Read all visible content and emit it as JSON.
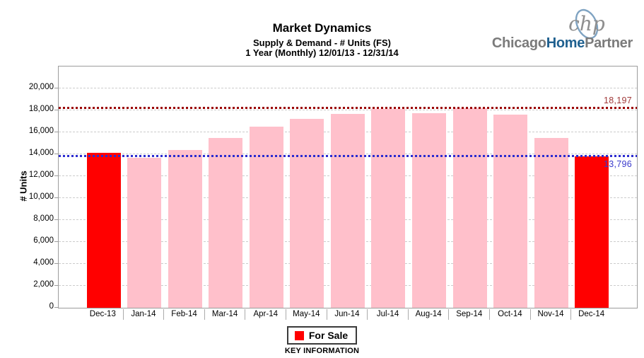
{
  "header": {
    "title": "Market Dynamics",
    "subtitle1": "Supply & Demand - # Units (FS)",
    "subtitle2": "1 Year (Monthly) 12/01/13 - 12/31/14"
  },
  "logo": {
    "monogram": "chp",
    "part1": "Chicago",
    "part2": "Home",
    "part3": "Partner",
    "gray": "#7b7b7b",
    "blue": "#1f608f",
    "ellipse_stroke": "#7fa3c2"
  },
  "chart_data": {
    "type": "bar",
    "title": "Market Dynamics",
    "xlabel": "",
    "ylabel": "# Units",
    "ylim": [
      0,
      22000
    ],
    "grid": true,
    "categories": [
      "Dec-13",
      "Jan-14",
      "Feb-14",
      "Mar-14",
      "Apr-14",
      "May-14",
      "Jun-14",
      "Jul-14",
      "Aug-14",
      "Sep-14",
      "Oct-14",
      "Nov-14",
      "Dec-14"
    ],
    "series": [
      {
        "name": "For Sale",
        "values": [
          14100,
          13700,
          14400,
          15500,
          16500,
          17250,
          17700,
          18100,
          17750,
          18197,
          17600,
          15500,
          13796
        ]
      }
    ],
    "bar_color": "#FFC0CB",
    "highlight_color": "#FF0000",
    "highlight_indices": [
      0,
      12
    ],
    "ytick_values": [
      0,
      2000,
      4000,
      6000,
      8000,
      10000,
      12000,
      14000,
      16000,
      18000,
      20000
    ],
    "ytick_labels": [
      "0",
      "2,000",
      "4,000",
      "6,000",
      "8,000",
      "10,000",
      "12,000",
      "14,000",
      "16,000",
      "18,000",
      "20,000"
    ],
    "reference_lines": [
      {
        "name": "max-line",
        "value": 18197,
        "label": "18,197",
        "line_color": "#9b0000",
        "label_color": "#a03a3a",
        "label_side": "above"
      },
      {
        "name": "current-line",
        "value": 13796,
        "label": "13,796",
        "line_color": "#2b2bd0",
        "label_color": "#3a3acc",
        "label_side": "below"
      }
    ],
    "legend": {
      "label": "For Sale",
      "swatch_color": "#FF0000",
      "position": "bottom"
    },
    "footer": "KEY INFORMATION"
  }
}
